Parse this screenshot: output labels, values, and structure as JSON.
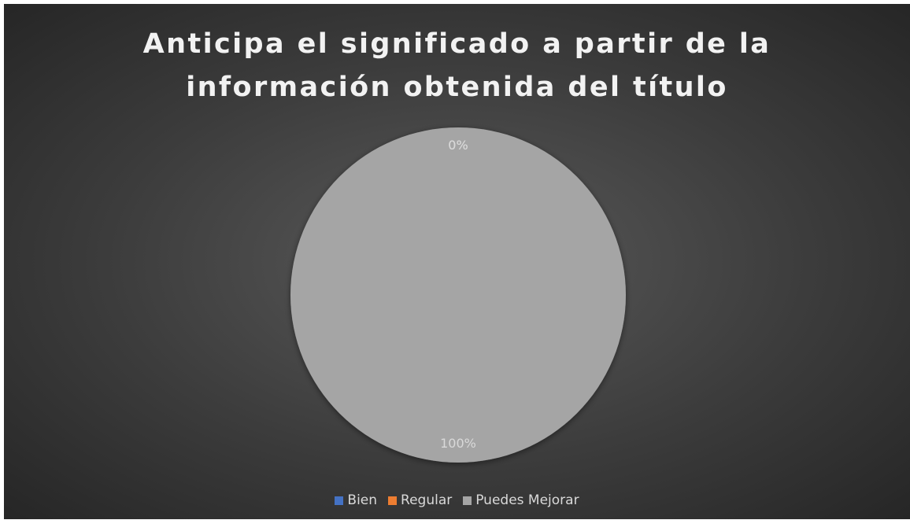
{
  "chart_data": {
    "type": "pie",
    "title": "Anticipa el significado a partir de la información obtenida del título",
    "categories": [
      "Bien",
      "Regular",
      "Puedes Mejorar"
    ],
    "values": [
      0,
      0,
      100
    ],
    "value_labels": [
      "0%",
      "0%",
      "100%"
    ],
    "colors": [
      "#4472c4",
      "#ed7d31",
      "#a5a5a5"
    ],
    "legend": "bottom"
  }
}
